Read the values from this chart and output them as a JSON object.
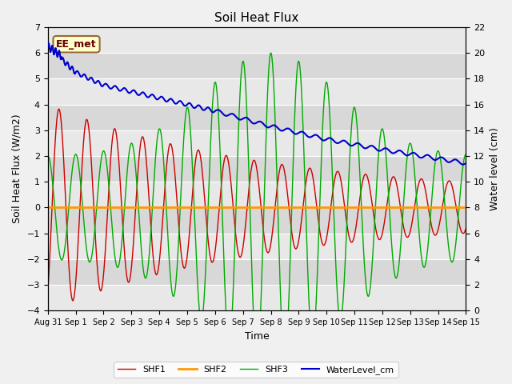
{
  "title": "Soil Heat Flux",
  "xlabel": "Time",
  "ylabel_left": "Soil Heat Flux (W/m2)",
  "ylabel_right": "Water level (cm)",
  "ylim_left": [
    -4.0,
    7.0
  ],
  "ylim_right": [
    0,
    22
  ],
  "background_color": "#f0f0f0",
  "plot_bg_color": "#e8e8e8",
  "grid_color": "#ffffff",
  "band_color_light": "#e8e8e8",
  "band_color_dark": "#d8d8d8",
  "shf1_color": "#cc0000",
  "shf2_color": "#ff9900",
  "shf3_color": "#00aa00",
  "water_color": "#0000cc",
  "legend_items": [
    "SHF1",
    "SHF2",
    "SHF3",
    "WaterLevel_cm"
  ],
  "annotation_text": "EE_met",
  "annotation_bg": "#ffffcc",
  "annotation_border": "#996633",
  "title_fontsize": 11,
  "label_fontsize": 9,
  "tick_fontsize": 8
}
